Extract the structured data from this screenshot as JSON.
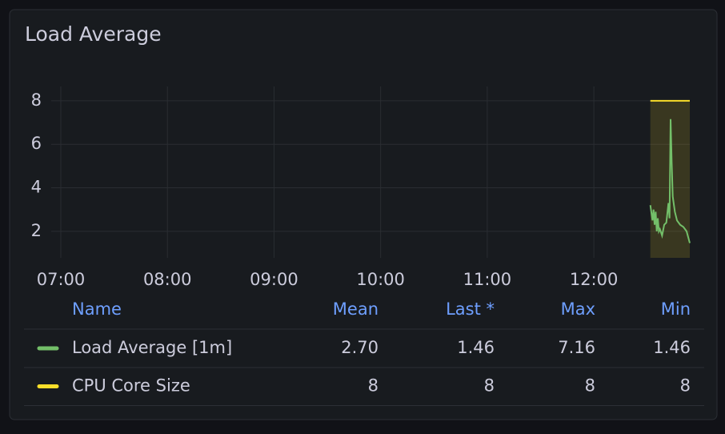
{
  "chart_data": {
    "type": "line",
    "title": "Load Average",
    "xlim": [
      6.91,
      12.9
    ],
    "xticks": [
      {
        "value": 7,
        "label": "07:00"
      },
      {
        "value": 8,
        "label": "08:00"
      },
      {
        "value": 9,
        "label": "09:00"
      },
      {
        "value": 10,
        "label": "10:00"
      },
      {
        "value": 11,
        "label": "11:00"
      },
      {
        "value": 12,
        "label": "12:00"
      }
    ],
    "ylim": [
      0.78,
      8.66
    ],
    "yticks": [
      2,
      4,
      6,
      8
    ],
    "grid": true,
    "legend_columns": [
      "Name",
      "Mean",
      "Last *",
      "Max",
      "Min"
    ],
    "series": [
      {
        "name": "Load Average [1m]",
        "color": "#73bf69",
        "fill": false,
        "x": [
          12.53,
          12.55,
          12.56,
          12.57,
          12.58,
          12.59,
          12.6,
          12.61,
          12.62,
          12.64,
          12.66,
          12.68,
          12.7,
          12.71,
          12.72,
          12.73,
          12.74,
          12.76,
          12.78,
          12.81,
          12.84,
          12.87,
          12.9
        ],
        "values": [
          3.2,
          2.5,
          3.0,
          2.3,
          2.9,
          2.0,
          2.6,
          2.0,
          2.1,
          1.8,
          2.3,
          2.4,
          3.3,
          2.6,
          7.16,
          5.2,
          3.6,
          2.9,
          2.5,
          2.3,
          2.2,
          2.0,
          1.46
        ],
        "stats": [
          {
            "value": 2.7,
            "label": "2.70"
          },
          1.46,
          7.16,
          1.46
        ]
      },
      {
        "name": "CPU Core Size",
        "color": "#fade2a",
        "fill": true,
        "x": [
          12.53,
          12.9
        ],
        "values": [
          8,
          8
        ],
        "stats": [
          8,
          8,
          8,
          8
        ]
      }
    ]
  }
}
